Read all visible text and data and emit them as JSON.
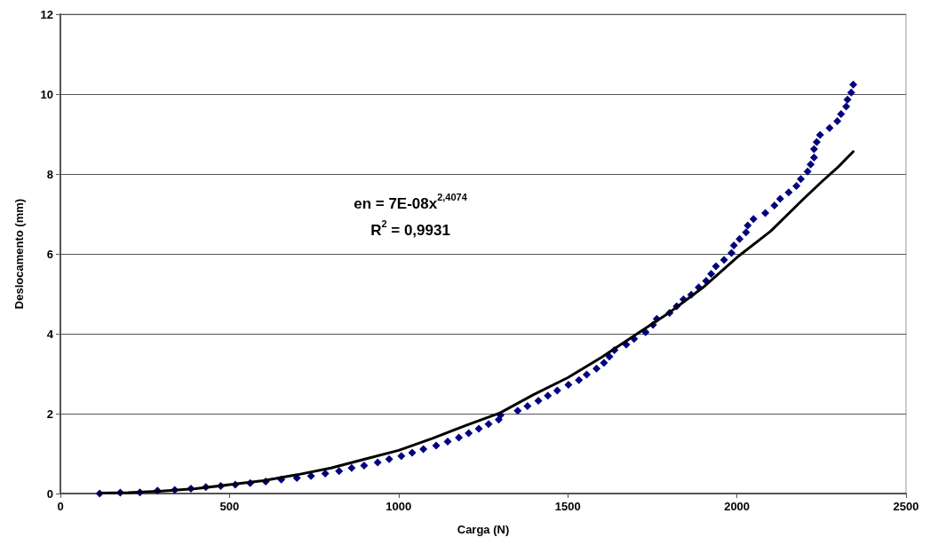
{
  "chart_data": {
    "type": "scatter",
    "xlabel": "Carga (N)",
    "ylabel": "Deslocamento (mm)",
    "xlim": [
      0,
      2500
    ],
    "xticks": [
      0,
      500,
      1000,
      1500,
      2000,
      2500
    ],
    "ylim": [
      0,
      12
    ],
    "yticks": [
      0,
      2,
      4,
      6,
      8,
      10,
      12
    ],
    "grid": "y",
    "annotations": [
      "en = 7E-08x$^{2,4074}$",
      "R$^{2}$ = 0,9931"
    ],
    "series": [
      {
        "color": "#000080",
        "marker": "diamond",
        "x": [
          116,
          177,
          235,
          287,
          338,
          386,
          430,
          474,
          517,
          561,
          607,
          653,
          699,
          741,
          783,
          824,
          861,
          898,
          938,
          972,
          1008,
          1040,
          1073,
          1111,
          1145,
          1178,
          1207,
          1237,
          1266,
          1296,
          1301,
          1352,
          1381,
          1413,
          1441,
          1469,
          1502,
          1533,
          1556,
          1585,
          1607,
          1623,
          1638,
          1673,
          1696,
          1730,
          1752,
          1763,
          1801,
          1822,
          1842,
          1865,
          1887,
          1909,
          1924,
          1938,
          1962,
          1984,
          1991,
          2008,
          2027,
          2032,
          2049,
          2084,
          2111,
          2128,
          2153,
          2176,
          2189,
          2209,
          2218,
          2228,
          2228,
          2236,
          2246,
          2274,
          2297,
          2308,
          2323,
          2327,
          2338,
          2344
        ],
        "values": [
          0,
          0.02,
          0.03,
          0.07,
          0.09,
          0.12,
          0.16,
          0.19,
          0.22,
          0.26,
          0.3,
          0.35,
          0.39,
          0.44,
          0.5,
          0.56,
          0.64,
          0.7,
          0.78,
          0.86,
          0.94,
          1.02,
          1.11,
          1.2,
          1.3,
          1.4,
          1.51,
          1.62,
          1.74,
          1.85,
          1.96,
          2.07,
          2.19,
          2.32,
          2.45,
          2.58,
          2.72,
          2.84,
          2.98,
          3.13,
          3.27,
          3.43,
          3.59,
          3.73,
          3.87,
          4.04,
          4.22,
          4.37,
          4.52,
          4.69,
          4.86,
          4.98,
          5.16,
          5.32,
          5.5,
          5.69,
          5.85,
          6.02,
          6.21,
          6.37,
          6.54,
          6.71,
          6.87,
          7.02,
          7.21,
          7.38,
          7.54,
          7.7,
          7.87,
          8.06,
          8.24,
          8.41,
          8.62,
          8.8,
          8.98,
          9.15,
          9.32,
          9.5,
          9.69,
          9.86,
          10.04,
          10.24
        ]
      },
      {
        "type": "line",
        "color": "#000000",
        "marker": "none",
        "line_style": "solid",
        "x": [
          116,
          200,
          300,
          400,
          500,
          600,
          700,
          800,
          900,
          1000,
          1100,
          1200,
          1300,
          1400,
          1500,
          1600,
          1700,
          1800,
          1900,
          2000,
          2100,
          2200,
          2250,
          2300,
          2344
        ],
        "values": [
          0.01,
          0.02,
          0.06,
          0.12,
          0.22,
          0.32,
          0.47,
          0.64,
          0.86,
          1.08,
          1.38,
          1.71,
          2.02,
          2.48,
          2.9,
          3.41,
          3.97,
          4.53,
          5.16,
          5.91,
          6.57,
          7.4,
          7.8,
          8.18,
          8.56
        ]
      }
    ]
  }
}
